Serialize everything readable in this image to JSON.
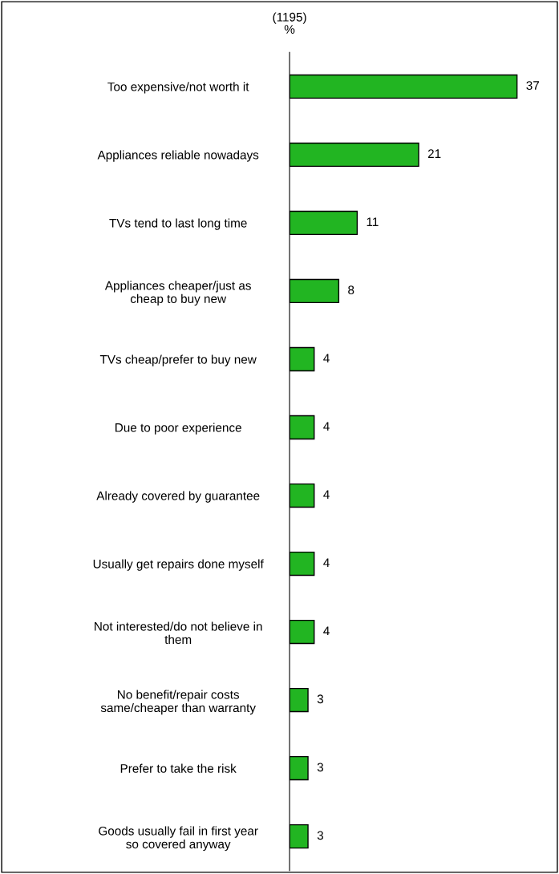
{
  "chart_data": {
    "type": "bar",
    "orientation": "horizontal",
    "title": "(1195)",
    "subtitle": "%",
    "categories": [
      "Too expensive/not worth it",
      "Appliances reliable nowadays",
      "TVs tend to last long time",
      "Appliances cheaper/just as\ncheap to buy new",
      "TVs cheap/prefer to buy new",
      "Due to poor experience",
      "Already covered by guarantee",
      "Usually get repairs done myself",
      "Not interested/do not believe in\nthem",
      "No benefit/repair costs\nsame/cheaper than warranty",
      "Prefer to take the risk",
      "Goods usually fail in first year\nso covered anyway"
    ],
    "values": [
      37,
      21,
      11,
      8,
      4,
      4,
      4,
      4,
      4,
      3,
      3,
      3
    ],
    "color": "#22b522",
    "data_labels": true,
    "grid": false,
    "legend": false
  }
}
